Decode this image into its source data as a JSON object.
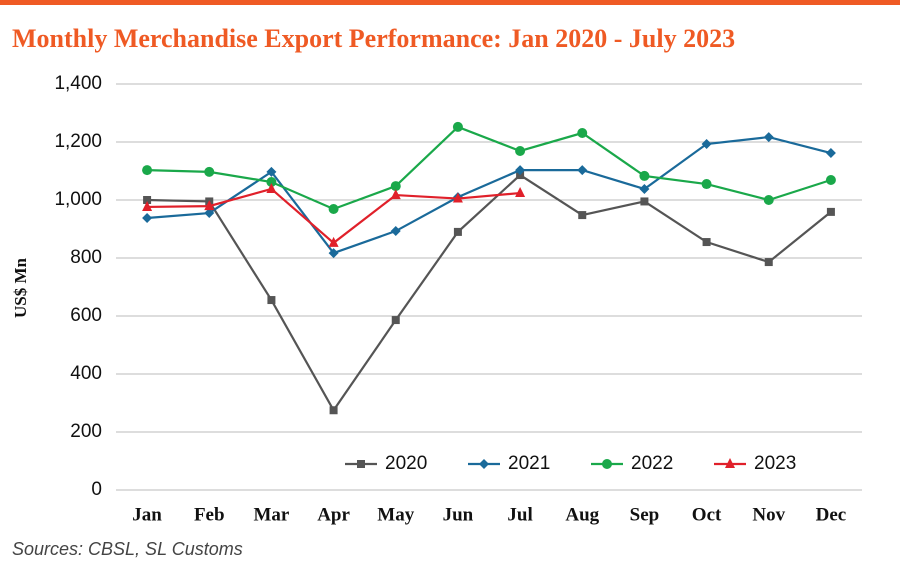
{
  "chart_data": {
    "type": "line",
    "title": "Monthly Merchandise Export Performance: Jan 2020 - July 2023",
    "y_label": "US$ Mn",
    "source": "Sources: CBSL, SL Customs",
    "categories": [
      "Jan",
      "Feb",
      "Mar",
      "Apr",
      "May",
      "Jun",
      "Jul",
      "Aug",
      "Sep",
      "Oct",
      "Nov",
      "Dec"
    ],
    "series": [
      {
        "name": "2020",
        "color": "#555555",
        "marker": "square",
        "values": [
          1000,
          995,
          655,
          275,
          586,
          890,
          1086,
          948,
          995,
          855,
          786,
          959
        ]
      },
      {
        "name": "2021",
        "color": "#1a6a9a",
        "marker": "diamond",
        "values": [
          938,
          955,
          1097,
          817,
          893,
          1010,
          1103,
          1103,
          1038,
          1193,
          1217,
          1162
        ]
      },
      {
        "name": "2022",
        "color": "#1aa84a",
        "marker": "circle",
        "values": [
          1103,
          1097,
          1062,
          969,
          1048,
          1252,
          1169,
          1231,
          1083,
          1055,
          1000,
          1069
        ]
      },
      {
        "name": "2023",
        "color": "#e0202a",
        "marker": "triangle",
        "values": [
          976,
          979,
          1038,
          852,
          1017,
          1005,
          1024,
          null,
          null,
          null,
          null,
          null
        ]
      }
    ],
    "ylim": [
      0,
      1400
    ],
    "yticks": [
      0,
      200,
      400,
      600,
      800,
      {
        "value": 1000,
        "label": "1,000"
      },
      {
        "value": 1200,
        "label": "1,200"
      },
      {
        "value": 1400,
        "label": "1,400"
      }
    ],
    "grid": true,
    "legend": "bottom"
  }
}
